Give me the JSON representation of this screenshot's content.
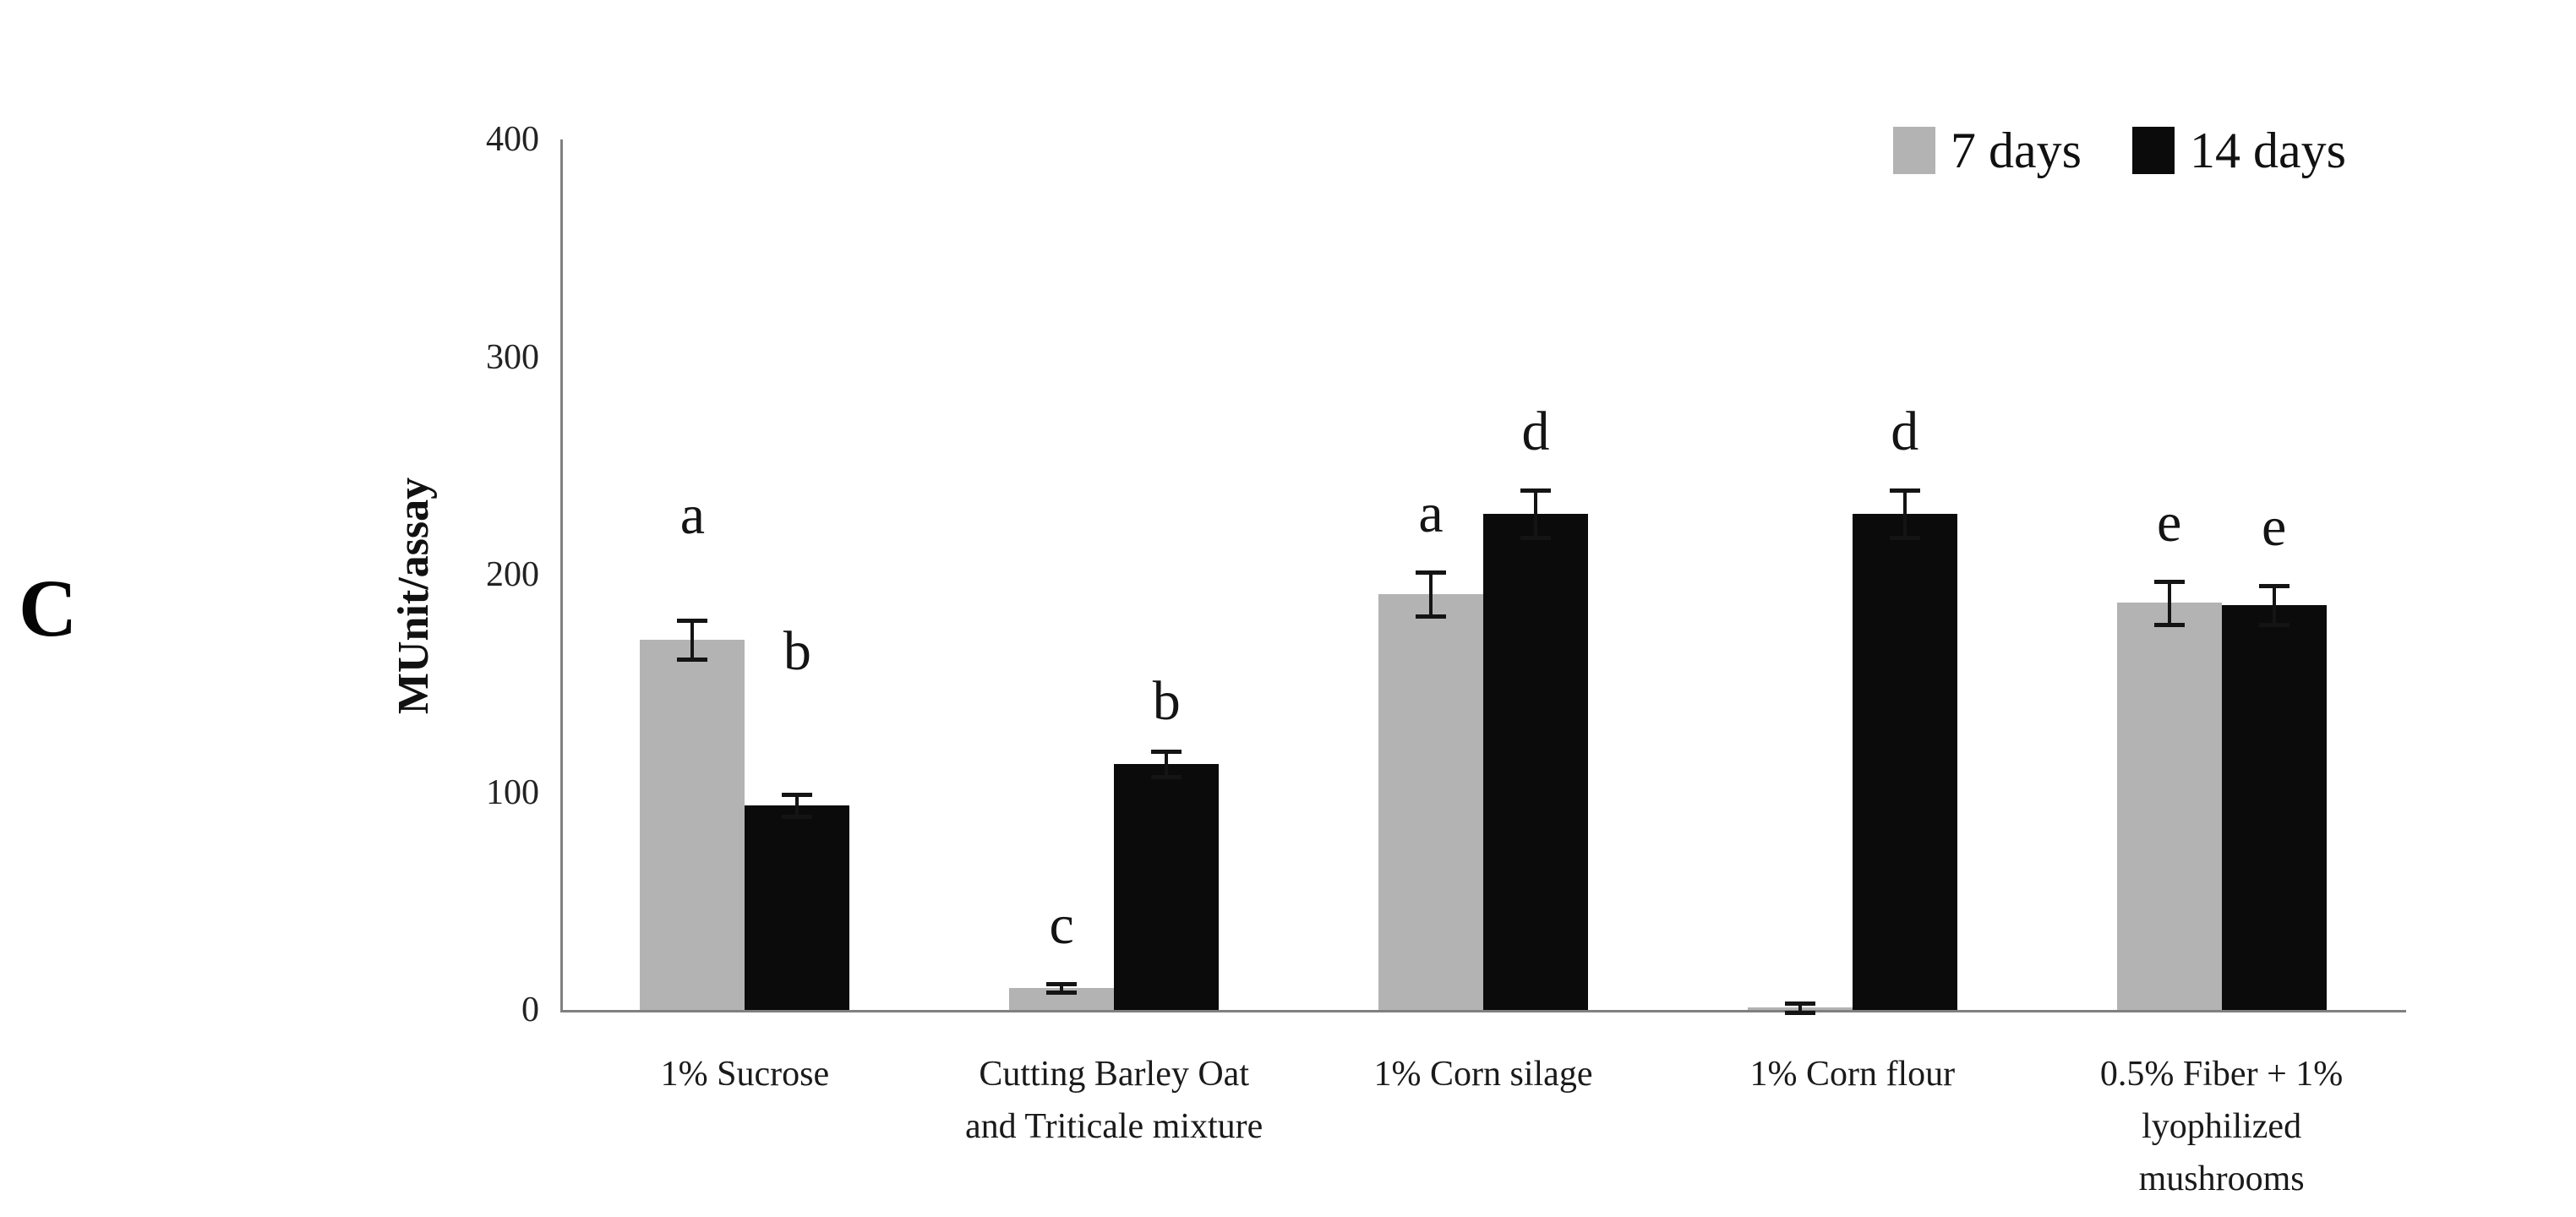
{
  "panel_label": "C",
  "legend": {
    "items": [
      {
        "label": "7 days",
        "color": "#b3b3b3"
      },
      {
        "label": "14 days",
        "color": "#0b0b0b"
      }
    ]
  },
  "chart_data": {
    "type": "bar",
    "title": "",
    "xlabel": "",
    "ylabel": "MUnit/assay",
    "ylim": [
      0,
      400
    ],
    "yticks": [
      0,
      100,
      200,
      300,
      400
    ],
    "grid": false,
    "legend_position": "top-right",
    "categories": [
      "1% Sucrose",
      "Cutting Barley Oat and Triticale mixture",
      "1% Corn silage",
      "1% Corn flour",
      "0.5% Fiber + 1% lyophilized mushrooms"
    ],
    "category_label_lines": [
      [
        "1% Sucrose"
      ],
      [
        "Cutting Barley Oat",
        "and Triticale mixture"
      ],
      [
        "1% Corn silage"
      ],
      [
        "1% Corn flour"
      ],
      [
        "0.5% Fiber + 1%",
        "lyophilized",
        "mushrooms"
      ]
    ],
    "series": [
      {
        "name": "7 days",
        "color": "#b3b3b3",
        "values": [
          170,
          10,
          191,
          1,
          187
        ],
        "errors": [
          9,
          2,
          10,
          2,
          10
        ],
        "letters": [
          "a",
          "c",
          "a",
          "",
          "e"
        ],
        "letter_gap_px": [
          95,
          40,
          40,
          0,
          40
        ]
      },
      {
        "name": "14 days",
        "color": "#0b0b0b",
        "values": [
          94,
          113,
          228,
          228,
          186
        ],
        "errors": [
          5,
          6,
          11,
          11,
          9
        ],
        "letters": [
          "b",
          "b",
          "d",
          "d",
          "e"
        ],
        "letter_gap_px": [
          140,
          30,
          40,
          40,
          40
        ]
      }
    ]
  }
}
